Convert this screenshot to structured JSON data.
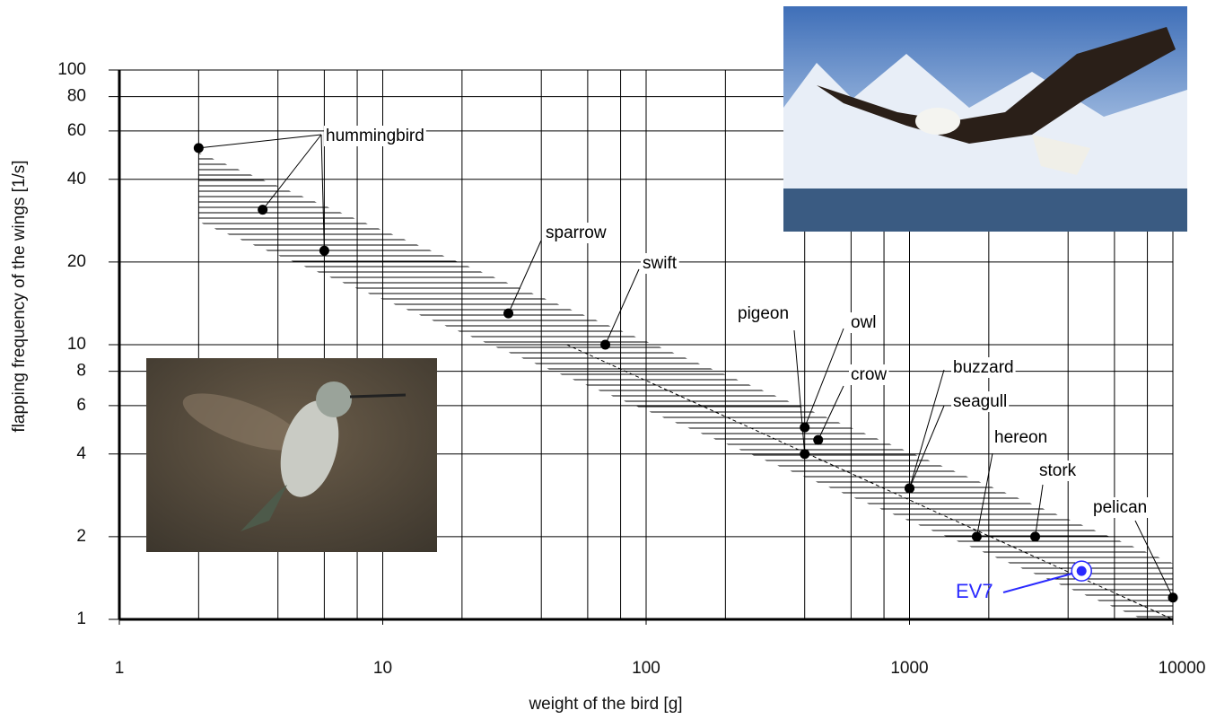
{
  "chart_data": {
    "type": "scatter",
    "xlabel": "weight of the bird [g]",
    "ylabel": "flapping frequency of the wings [1/s]",
    "log_x": true,
    "log_y": true,
    "grid": true,
    "xlim": [
      1,
      10000
    ],
    "xticks": [
      1,
      10,
      100,
      1000,
      10000
    ],
    "xgrid": [
      2,
      4,
      6,
      8,
      20,
      40,
      60,
      80,
      200,
      400,
      600,
      800,
      2000,
      4000,
      6000,
      8000
    ],
    "ylim": [
      1,
      100
    ],
    "yticks": [
      1,
      2,
      4,
      6,
      8,
      10,
      20,
      40,
      60,
      80,
      100
    ],
    "band": {
      "x": [
        2,
        10000
      ],
      "upper": [
        50,
        1.6
      ],
      "lower": [
        28,
        0.9
      ]
    },
    "trend": {
      "x": [
        50,
        10000
      ],
      "y": [
        10,
        1
      ]
    },
    "points": [
      {
        "label": "hummingbird",
        "color": "#000000",
        "x": [
          2,
          3.5,
          6
        ],
        "y": [
          52,
          31,
          22
        ]
      },
      {
        "label": "sparrow",
        "color": "#000000",
        "x": [
          30
        ],
        "y": [
          13
        ]
      },
      {
        "label": "swift",
        "color": "#000000",
        "x": [
          70
        ],
        "y": [
          10
        ]
      },
      {
        "label": "pigeon",
        "color": "#000000",
        "x": [
          400
        ],
        "y": [
          4
        ]
      },
      {
        "label": "owl",
        "color": "#000000",
        "x": [
          400
        ],
        "y": [
          5
        ]
      },
      {
        "label": "crow",
        "color": "#000000",
        "x": [
          450
        ],
        "y": [
          4.5
        ]
      },
      {
        "label": "buzzard",
        "color": "#000000",
        "x": [
          1000
        ],
        "y": [
          3
        ]
      },
      {
        "label": "seagull",
        "color": "#000000",
        "x": [
          1000
        ],
        "y": [
          3
        ]
      },
      {
        "label": "hereon",
        "color": "#000000",
        "x": [
          1800
        ],
        "y": [
          2
        ]
      },
      {
        "label": "stork",
        "color": "#000000",
        "x": [
          3000
        ],
        "y": [
          2
        ]
      },
      {
        "label": "pelican",
        "color": "#000000",
        "x": [
          10000
        ],
        "y": [
          1.2
        ]
      },
      {
        "label": "EV7",
        "color": "#2a2aff",
        "x": [
          4500
        ],
        "y": [
          1.5
        ]
      }
    ]
  }
}
